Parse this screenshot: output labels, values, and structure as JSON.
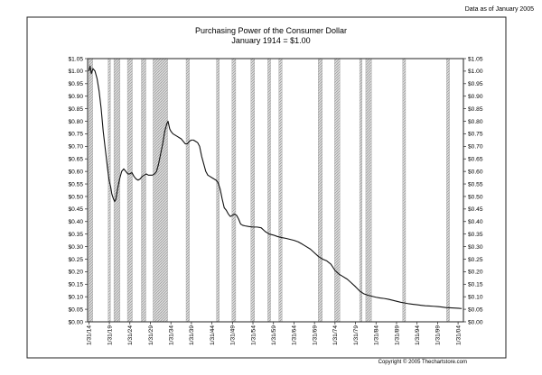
{
  "corner_note": "Data as of January 2005",
  "copyright": "Copyright © 2005 Thechartstore.com",
  "colors": {
    "line": "#111111",
    "recession_fill": "#d9d9d9",
    "recession_hatch": "#8c8c8c",
    "frame": "#222222",
    "plot_background": "#ffffff"
  },
  "chart_data": {
    "type": "line",
    "title": "Purchasing Power of the Consumer Dollar",
    "subtitle": "January 1914 = $1.00",
    "xlabel": "",
    "ylabel": "",
    "xlim": [
      1913.7,
      2005.3
    ],
    "ylim": [
      0,
      1.05
    ],
    "y_ticks": [
      0,
      0.05,
      0.1,
      0.15,
      0.2,
      0.25,
      0.3,
      0.35,
      0.4,
      0.45,
      0.5,
      0.55,
      0.6,
      0.65,
      0.7,
      0.75,
      0.8,
      0.85,
      0.9,
      0.95,
      1.0,
      1.05
    ],
    "y_tick_labels": [
      "$0.00",
      "$0.05",
      "$0.10",
      "$0.15",
      "$0.20",
      "$0.25",
      "$0.30",
      "$0.35",
      "$0.40",
      "$0.45",
      "$0.50",
      "$0.55",
      "$0.60",
      "$0.65",
      "$0.70",
      "$0.75",
      "$0.80",
      "$0.85",
      "$0.90",
      "$0.95",
      "$1.00",
      "$1.05"
    ],
    "y_axis_both_sides": true,
    "x_ticks": [
      {
        "x": 1914,
        "label": "1/31/14"
      },
      {
        "x": 1919,
        "label": "1/31/19"
      },
      {
        "x": 1924,
        "label": "1/31/24"
      },
      {
        "x": 1929,
        "label": "1/31/29"
      },
      {
        "x": 1934,
        "label": "1/31/34"
      },
      {
        "x": 1939,
        "label": "1/31/39"
      },
      {
        "x": 1944,
        "label": "1/31/44"
      },
      {
        "x": 1949,
        "label": "1/31/49"
      },
      {
        "x": 1954,
        "label": "1/31/54"
      },
      {
        "x": 1959,
        "label": "1/31/59"
      },
      {
        "x": 1964,
        "label": "1/31/64"
      },
      {
        "x": 1969,
        "label": "1/31/69"
      },
      {
        "x": 1974,
        "label": "1/31/74"
      },
      {
        "x": 1979,
        "label": "1/31/79"
      },
      {
        "x": 1984,
        "label": "1/31/84"
      },
      {
        "x": 1989,
        "label": "1/31/89"
      },
      {
        "x": 1994,
        "label": "1/31/94"
      },
      {
        "x": 1999,
        "label": "1/31/99"
      },
      {
        "x": 2004,
        "label": "1/31/04"
      }
    ],
    "grid": false,
    "legend": "none",
    "shaded_periods": [
      [
        1914.0,
        1914.95
      ],
      [
        1918.7,
        1919.25
      ],
      [
        1920.1,
        1921.6
      ],
      [
        1923.4,
        1924.6
      ],
      [
        1926.8,
        1927.9
      ],
      [
        1929.65,
        1933.2
      ],
      [
        1937.7,
        1938.5
      ],
      [
        1945.1,
        1945.8
      ],
      [
        1948.9,
        1949.8
      ],
      [
        1953.5,
        1954.4
      ],
      [
        1957.6,
        1958.3
      ],
      [
        1960.3,
        1961.1
      ],
      [
        1969.9,
        1970.9
      ],
      [
        1973.9,
        1975.2
      ],
      [
        1980.0,
        1980.6
      ],
      [
        1981.5,
        1982.9
      ],
      [
        1990.5,
        1991.2
      ],
      [
        2001.2,
        2001.9
      ]
    ],
    "series": [
      {
        "points": [
          [
            1914.0,
            1.0
          ],
          [
            1914.3,
            1.02
          ],
          [
            1914.6,
            0.99
          ],
          [
            1915.0,
            1.01
          ],
          [
            1915.5,
            1.0
          ],
          [
            1916.0,
            0.97
          ],
          [
            1916.5,
            0.92
          ],
          [
            1917.0,
            0.85
          ],
          [
            1917.5,
            0.76
          ],
          [
            1918.0,
            0.69
          ],
          [
            1918.5,
            0.62
          ],
          [
            1918.8,
            0.58
          ],
          [
            1919.0,
            0.56
          ],
          [
            1919.3,
            0.54
          ],
          [
            1919.6,
            0.51
          ],
          [
            1920.0,
            0.49
          ],
          [
            1920.3,
            0.48
          ],
          [
            1920.6,
            0.49
          ],
          [
            1921.0,
            0.53
          ],
          [
            1921.5,
            0.57
          ],
          [
            1922.0,
            0.6
          ],
          [
            1922.5,
            0.61
          ],
          [
            1923.0,
            0.6
          ],
          [
            1923.5,
            0.59
          ],
          [
            1924.0,
            0.59
          ],
          [
            1924.5,
            0.595
          ],
          [
            1925.0,
            0.58
          ],
          [
            1925.5,
            0.57
          ],
          [
            1926.0,
            0.565
          ],
          [
            1926.5,
            0.57
          ],
          [
            1927.0,
            0.58
          ],
          [
            1927.5,
            0.585
          ],
          [
            1928.0,
            0.59
          ],
          [
            1928.5,
            0.585
          ],
          [
            1929.0,
            0.585
          ],
          [
            1929.5,
            0.585
          ],
          [
            1930.0,
            0.59
          ],
          [
            1930.5,
            0.6
          ],
          [
            1931.0,
            0.63
          ],
          [
            1931.5,
            0.67
          ],
          [
            1932.0,
            0.71
          ],
          [
            1932.5,
            0.76
          ],
          [
            1933.0,
            0.79
          ],
          [
            1933.3,
            0.8
          ],
          [
            1933.7,
            0.77
          ],
          [
            1934.0,
            0.76
          ],
          [
            1934.5,
            0.75
          ],
          [
            1935.0,
            0.745
          ],
          [
            1935.5,
            0.74
          ],
          [
            1936.0,
            0.735
          ],
          [
            1936.5,
            0.73
          ],
          [
            1937.0,
            0.72
          ],
          [
            1937.5,
            0.71
          ],
          [
            1938.0,
            0.71
          ],
          [
            1938.5,
            0.72
          ],
          [
            1939.0,
            0.725
          ],
          [
            1939.5,
            0.725
          ],
          [
            1940.0,
            0.72
          ],
          [
            1940.5,
            0.715
          ],
          [
            1941.0,
            0.7
          ],
          [
            1941.5,
            0.66
          ],
          [
            1942.0,
            0.63
          ],
          [
            1942.5,
            0.6
          ],
          [
            1943.0,
            0.585
          ],
          [
            1943.5,
            0.58
          ],
          [
            1944.0,
            0.575
          ],
          [
            1944.5,
            0.57
          ],
          [
            1945.0,
            0.565
          ],
          [
            1945.5,
            0.555
          ],
          [
            1946.0,
            0.53
          ],
          [
            1946.5,
            0.49
          ],
          [
            1947.0,
            0.455
          ],
          [
            1947.5,
            0.445
          ],
          [
            1948.0,
            0.43
          ],
          [
            1948.5,
            0.42
          ],
          [
            1949.0,
            0.425
          ],
          [
            1949.5,
            0.43
          ],
          [
            1950.0,
            0.425
          ],
          [
            1950.5,
            0.41
          ],
          [
            1951.0,
            0.39
          ],
          [
            1951.5,
            0.385
          ],
          [
            1952.0,
            0.383
          ],
          [
            1953.0,
            0.38
          ],
          [
            1954.0,
            0.378
          ],
          [
            1955.0,
            0.378
          ],
          [
            1956.0,
            0.375
          ],
          [
            1957.0,
            0.36
          ],
          [
            1958.0,
            0.35
          ],
          [
            1959.0,
            0.346
          ],
          [
            1960.0,
            0.34
          ],
          [
            1961.0,
            0.336
          ],
          [
            1962.0,
            0.333
          ],
          [
            1963.0,
            0.329
          ],
          [
            1964.0,
            0.325
          ],
          [
            1965.0,
            0.319
          ],
          [
            1966.0,
            0.31
          ],
          [
            1967.0,
            0.3
          ],
          [
            1968.0,
            0.29
          ],
          [
            1969.0,
            0.275
          ],
          [
            1970.0,
            0.26
          ],
          [
            1971.0,
            0.25
          ],
          [
            1972.0,
            0.243
          ],
          [
            1973.0,
            0.23
          ],
          [
            1974.0,
            0.205
          ],
          [
            1975.0,
            0.19
          ],
          [
            1976.0,
            0.18
          ],
          [
            1977.0,
            0.17
          ],
          [
            1978.0,
            0.155
          ],
          [
            1979.0,
            0.14
          ],
          [
            1980.0,
            0.123
          ],
          [
            1981.0,
            0.112
          ],
          [
            1982.0,
            0.106
          ],
          [
            1983.0,
            0.102
          ],
          [
            1984.0,
            0.098
          ],
          [
            1985.0,
            0.095
          ],
          [
            1986.0,
            0.093
          ],
          [
            1987.0,
            0.09
          ],
          [
            1988.0,
            0.086
          ],
          [
            1989.0,
            0.082
          ],
          [
            1990.0,
            0.078
          ],
          [
            1991.0,
            0.075
          ],
          [
            1992.0,
            0.072
          ],
          [
            1993.0,
            0.07
          ],
          [
            1994.0,
            0.068
          ],
          [
            1995.0,
            0.066
          ],
          [
            1996.0,
            0.064
          ],
          [
            1997.0,
            0.063
          ],
          [
            1998.0,
            0.062
          ],
          [
            1999.0,
            0.061
          ],
          [
            2000.0,
            0.059
          ],
          [
            2001.0,
            0.057
          ],
          [
            2002.0,
            0.056
          ],
          [
            2003.0,
            0.055
          ],
          [
            2004.0,
            0.054
          ],
          [
            2004.9,
            0.053
          ]
        ]
      }
    ]
  }
}
